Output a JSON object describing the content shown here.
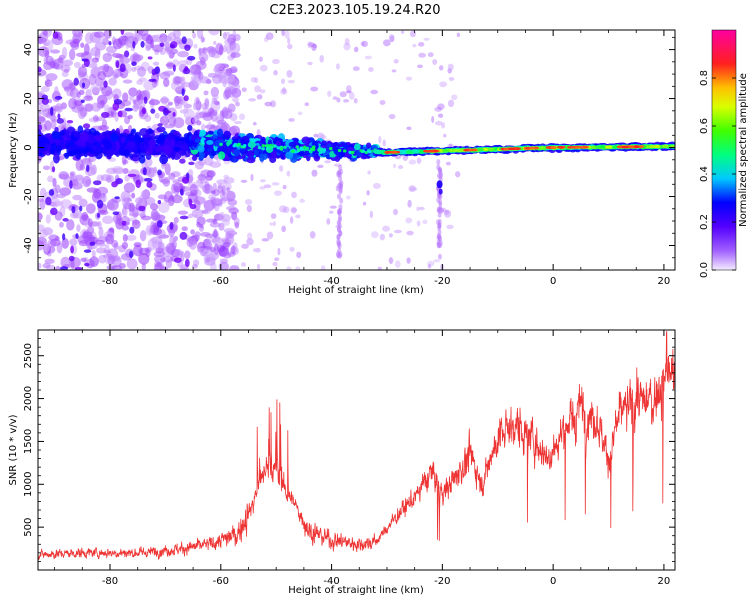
{
  "figure": {
    "title": "C2E3.2023.105.19.24.R20"
  },
  "chart_data": [
    {
      "type": "heatmap",
      "title": "C2E3.2023.105.19.24.R20",
      "xlabel": "Height of straight line (km)",
      "ylabel": "Frequency (Hz)",
      "xlim": [
        -93,
        22
      ],
      "ylim": [
        -50,
        48
      ],
      "x_ticks": [
        -80,
        -60,
        -40,
        -20,
        0,
        20
      ],
      "y_ticks": [
        -40,
        -20,
        0,
        20,
        40
      ],
      "x_tick_labels": [
        "-80",
        "-60",
        "-40",
        "-20",
        "0",
        "20"
      ],
      "y_tick_labels": [
        "-40",
        "-20",
        "0",
        "20",
        "40"
      ],
      "colorbar": {
        "label": "Normalized spectral amplitude",
        "range": [
          0,
          1
        ],
        "ticks": [
          0.0,
          0.2,
          0.4,
          0.6,
          0.8
        ],
        "tick_labels": [
          "0.0",
          "0.2",
          "0.4",
          "0.6",
          "0.8"
        ],
        "colormap": "rainbow",
        "colors": [
          "#f0e6ff",
          "#7a00ff",
          "#0000ff",
          "#00e5ff",
          "#00ff40",
          "#c8ff00",
          "#ffd000",
          "#ff2020",
          "#ff00a0"
        ]
      },
      "description_values": {
        "centerline_frequency_hz": [
          {
            "x": -93,
            "y": 2
          },
          {
            "x": -60,
            "y": 1
          },
          {
            "x": -30,
            "y": -2
          },
          {
            "x": 0,
            "y": 0
          },
          {
            "x": 22,
            "y": 0.5
          }
        ],
        "broad_scatter_x_range": [
          -93,
          -65
        ],
        "diffuse_band_x_range": [
          -65,
          -32
        ],
        "narrow_line_x_range": [
          -32,
          22
        ]
      }
    },
    {
      "type": "line",
      "xlabel": "Height of straight line (km)",
      "ylabel": "SNR (10 * v/v)",
      "xlim": [
        -93,
        22
      ],
      "ylim": [
        0,
        2800
      ],
      "x_ticks": [
        -80,
        -60,
        -40,
        -20,
        0,
        20
      ],
      "y_ticks": [
        500,
        1000,
        1500,
        2000,
        2500
      ],
      "x_tick_labels": [
        "-80",
        "-60",
        "-40",
        "-20",
        "0",
        "20"
      ],
      "y_tick_labels": [
        "500",
        "1000",
        "1500",
        "2000",
        "2500"
      ],
      "series": [
        {
          "color": "#ee3333",
          "envelope": [
            {
              "x": -93,
              "y": 180
            },
            {
              "x": -85,
              "y": 200
            },
            {
              "x": -75,
              "y": 200
            },
            {
              "x": -68,
              "y": 240
            },
            {
              "x": -62,
              "y": 300
            },
            {
              "x": -57,
              "y": 420
            },
            {
              "x": -54,
              "y": 800
            },
            {
              "x": -52,
              "y": 1200
            },
            {
              "x": -50,
              "y": 1100
            },
            {
              "x": -47,
              "y": 800
            },
            {
              "x": -44,
              "y": 450
            },
            {
              "x": -40,
              "y": 350
            },
            {
              "x": -35,
              "y": 300
            },
            {
              "x": -32,
              "y": 330
            },
            {
              "x": -28,
              "y": 650
            },
            {
              "x": -25,
              "y": 850
            },
            {
              "x": -22,
              "y": 1150
            },
            {
              "x": -20,
              "y": 900
            },
            {
              "x": -18,
              "y": 1050
            },
            {
              "x": -15,
              "y": 1350
            },
            {
              "x": -13,
              "y": 1000
            },
            {
              "x": -10,
              "y": 1550
            },
            {
              "x": -7,
              "y": 1700
            },
            {
              "x": -4,
              "y": 1550
            },
            {
              "x": -1,
              "y": 1300
            },
            {
              "x": 2,
              "y": 1650
            },
            {
              "x": 5,
              "y": 1900
            },
            {
              "x": 8,
              "y": 1750
            },
            {
              "x": 10,
              "y": 1300
            },
            {
              "x": 12,
              "y": 1800
            },
            {
              "x": 15,
              "y": 2000
            },
            {
              "x": 18,
              "y": 1950
            },
            {
              "x": 20,
              "y": 2250
            },
            {
              "x": 22,
              "y": 2300
            }
          ],
          "peak": {
            "x": 20.5,
            "y": 2780
          }
        }
      ]
    }
  ]
}
